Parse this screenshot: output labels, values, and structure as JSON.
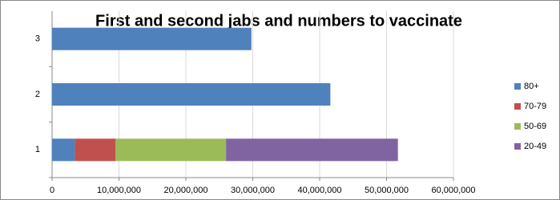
{
  "chart_data": {
    "type": "stacked-barh",
    "title": "First and second jabs and numbers to vaccinate",
    "categories": [
      "1",
      "2",
      "3"
    ],
    "series": [
      {
        "name": "80+",
        "color": "#4f81bd",
        "values": [
          3400000,
          41600000,
          29800000
        ]
      },
      {
        "name": "70-79",
        "color": "#c0504d",
        "values": [
          6100000,
          null,
          null
        ]
      },
      {
        "name": "50-69",
        "color": "#9bbb59",
        "values": [
          16500000,
          null,
          null
        ]
      },
      {
        "name": "20-49",
        "color": "#8064a2",
        "values": [
          25700000,
          null,
          null
        ]
      }
    ],
    "xlim": [
      0,
      60000000
    ],
    "xticks": [
      0,
      {
        "value": 10000000,
        "label": "10,000,000"
      },
      {
        "value": 20000000,
        "label": "20,000,000"
      },
      {
        "value": 30000000,
        "label": "30,000,000"
      },
      {
        "value": 40000000,
        "label": "40,000,000"
      },
      {
        "value": 50000000,
        "label": "50,000,000"
      },
      {
        "value": 60000000,
        "label": "60,000,000"
      }
    ],
    "grid": true,
    "legend": "right"
  }
}
